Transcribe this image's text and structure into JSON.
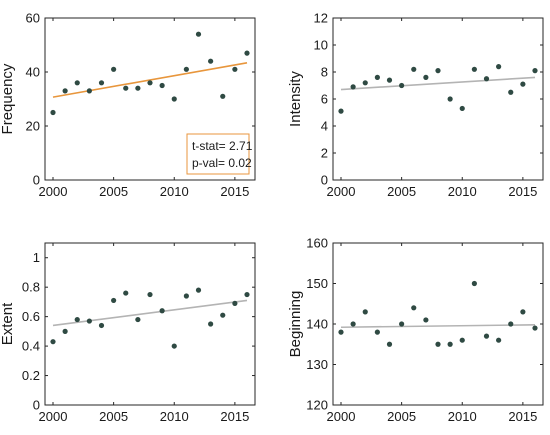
{
  "chart_data": [
    {
      "type": "scatter",
      "ylabel": "Frequency",
      "xlim": [
        2000,
        2016
      ],
      "ylim": [
        0,
        60
      ],
      "xticks": [
        2000,
        2005,
        2010,
        2015
      ],
      "yticks": [
        0,
        20,
        40,
        60
      ],
      "x": [
        2000,
        2001,
        2002,
        2003,
        2004,
        2005,
        2006,
        2007,
        2008,
        2009,
        2010,
        2011,
        2012,
        2013,
        2014,
        2015,
        2016
      ],
      "y": [
        25,
        33,
        36,
        33,
        36,
        41,
        34,
        34,
        36,
        35,
        30,
        41,
        54,
        44,
        31,
        41,
        47
      ],
      "trend": {
        "start": [
          2000,
          30.7
        ],
        "end": [
          2016,
          43.4
        ],
        "color": "#e8963c"
      },
      "stats": {
        "t_stat": "t-stat= 2.71",
        "p_val": "p-val= 0.02"
      },
      "grid": false
    },
    {
      "type": "scatter",
      "ylabel": "Intensity",
      "xlim": [
        2000,
        2016
      ],
      "ylim": [
        0,
        12
      ],
      "xticks": [
        2000,
        2005,
        2010,
        2015
      ],
      "yticks": [
        0,
        2,
        4,
        6,
        8,
        10,
        12
      ],
      "x": [
        2000,
        2001,
        2002,
        2003,
        2004,
        2005,
        2006,
        2007,
        2008,
        2009,
        2010,
        2011,
        2012,
        2013,
        2014,
        2015,
        2016
      ],
      "y": [
        5.1,
        6.9,
        7.2,
        7.6,
        7.4,
        7.0,
        8.2,
        7.6,
        8.1,
        6.0,
        5.3,
        8.2,
        7.5,
        8.4,
        6.5,
        7.1,
        8.1
      ],
      "trend": {
        "start": [
          2000,
          6.7
        ],
        "end": [
          2016,
          7.6
        ],
        "color": "#b4b4b4"
      },
      "grid": false
    },
    {
      "type": "scatter",
      "ylabel": "Extent",
      "xlim": [
        2000,
        2016
      ],
      "ylim": [
        0,
        1.1
      ],
      "xticks": [
        2000,
        2005,
        2010,
        2015
      ],
      "yticks": [
        0,
        0.2,
        0.4,
        0.6,
        0.8,
        1
      ],
      "x": [
        2000,
        2001,
        2002,
        2003,
        2004,
        2005,
        2006,
        2007,
        2008,
        2009,
        2010,
        2011,
        2012,
        2013,
        2014,
        2015,
        2016
      ],
      "y": [
        0.43,
        0.5,
        0.58,
        0.57,
        0.54,
        0.71,
        0.76,
        0.58,
        0.75,
        0.64,
        0.4,
        0.74,
        0.78,
        0.55,
        0.61,
        0.69,
        0.75
      ],
      "trend": {
        "start": [
          2000,
          0.54
        ],
        "end": [
          2016,
          0.71
        ],
        "color": "#b4b4b4"
      },
      "grid": false
    },
    {
      "type": "scatter",
      "ylabel": "Beginning",
      "xlim": [
        2000,
        2016
      ],
      "ylim": [
        120,
        160
      ],
      "xticks": [
        2000,
        2005,
        2010,
        2015
      ],
      "yticks": [
        120,
        130,
        140,
        150,
        160
      ],
      "x": [
        2000,
        2001,
        2002,
        2003,
        2004,
        2005,
        2006,
        2007,
        2008,
        2009,
        2010,
        2011,
        2012,
        2013,
        2014,
        2015,
        2016
      ],
      "y": [
        138,
        140,
        143,
        138,
        135,
        140,
        144,
        141,
        135,
        135,
        136,
        150,
        137,
        136,
        140,
        143,
        139
      ],
      "trend": {
        "start": [
          2000,
          139.2
        ],
        "end": [
          2016,
          139.8
        ],
        "color": "#b4b4b4"
      },
      "grid": false
    }
  ],
  "style": {
    "marker_color": "#2f4a43",
    "axis_color": "#262626"
  }
}
